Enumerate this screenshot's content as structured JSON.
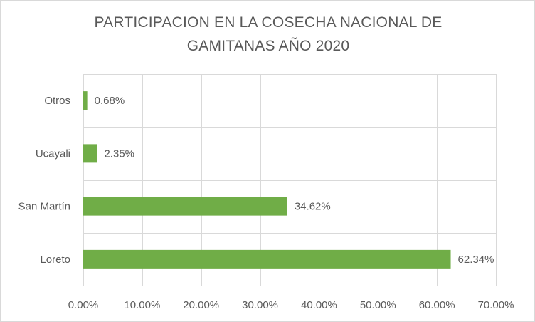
{
  "chart_data": {
    "type": "bar",
    "orientation": "horizontal",
    "title_lines": [
      "PARTICIPACION EN LA COSECHA NACIONAL DE",
      "GAMITANAS AÑO 2020"
    ],
    "categories": [
      "Otros",
      "Ucayali",
      "San Martín",
      "Loreto"
    ],
    "values": [
      0.68,
      2.35,
      34.62,
      62.34
    ],
    "data_labels": [
      "0.68%",
      "2.35%",
      "34.62%",
      "62.34%"
    ],
    "x_ticks": [
      0,
      10,
      20,
      30,
      40,
      50,
      60,
      70
    ],
    "x_tick_labels": [
      "0.00%",
      "10.00%",
      "20.00%",
      "30.00%",
      "40.00%",
      "50.00%",
      "60.00%",
      "70.00%"
    ],
    "xlim": [
      0,
      70
    ],
    "xlabel": "",
    "ylabel": "",
    "grid": true,
    "legend": "none",
    "bar_color": "#70ad47",
    "grid_color": "#d9d9d9",
    "text_color": "#595959"
  }
}
